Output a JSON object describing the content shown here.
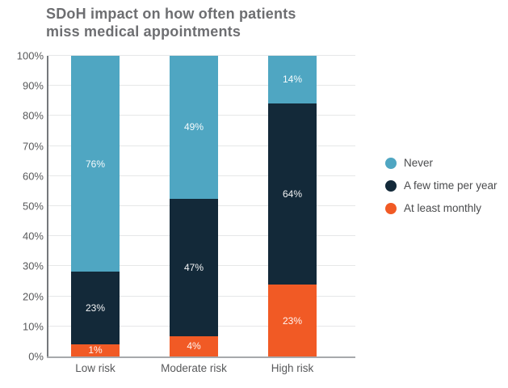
{
  "title_lines": [
    "SDoH impact on how often patients",
    "miss medical appointments"
  ],
  "chart_data": {
    "type": "bar",
    "stacked": true,
    "title": "SDoH impact on how often patients miss medical appointments",
    "categories": [
      "Low risk",
      "Moderate risk",
      "High risk"
    ],
    "series": [
      {
        "name": "Never",
        "color": "#4FA6C2",
        "values": [
          76,
          49,
          14
        ]
      },
      {
        "name": "A few time per year",
        "color": "#132939",
        "values": [
          23,
          47,
          64
        ]
      },
      {
        "name": "At least monthly",
        "color": "#F15A25",
        "values": [
          1,
          4,
          23
        ]
      }
    ],
    "data_label_suffix": "%",
    "ylim": [
      0,
      100
    ],
    "ytick_step": 10,
    "ytick_suffix": "%",
    "grid": true,
    "legend_position": "right"
  },
  "colors": {
    "title": "#6D6E71",
    "axis_label": "#58595B",
    "gridline": "#E6E7E8",
    "axis_line_left": "#75787B",
    "axis_line_bottom": "#A7A9AC",
    "bar_label": "#FFFFFF",
    "background": "#FFFFFF"
  }
}
